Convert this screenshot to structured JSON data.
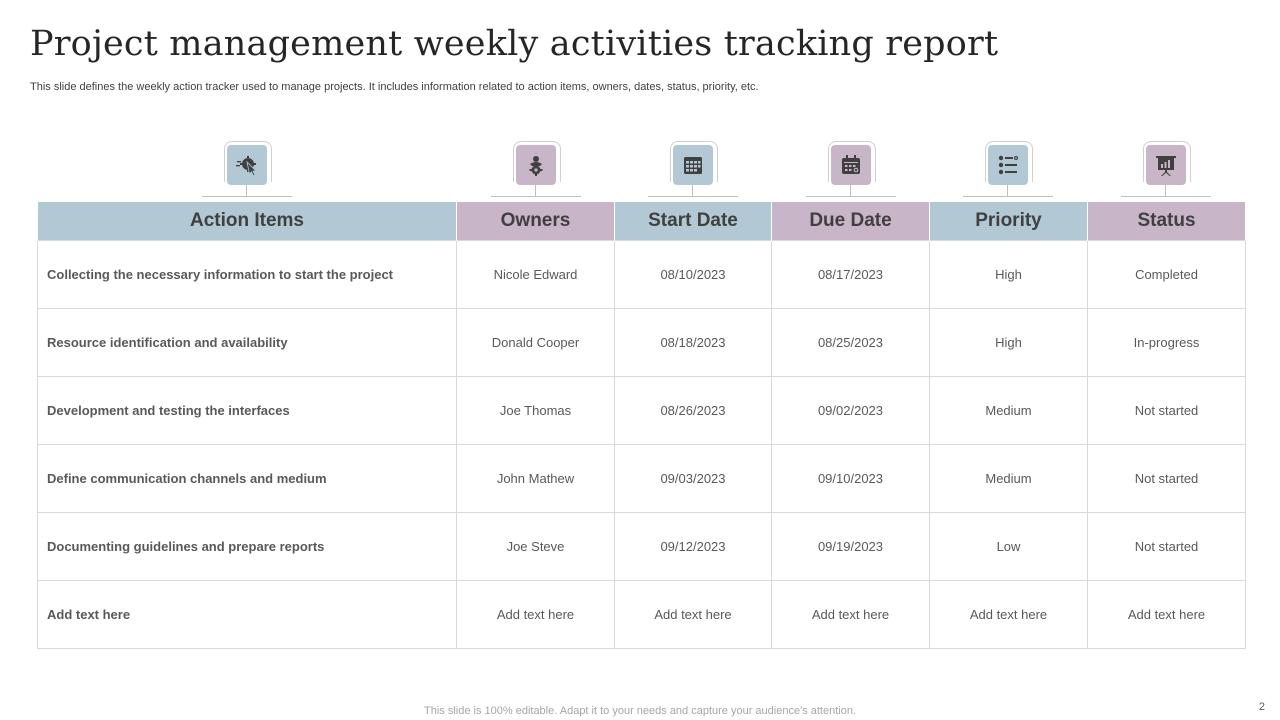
{
  "title": "Project management weekly activities tracking report",
  "subtitle": "This slide defines the weekly action tracker used to manage projects. It includes information related to action items, owners, dates, status, priority, etc.",
  "icons": [
    "gear-cursor-icon",
    "owner-person-icon",
    "calendar-icon",
    "calendar-alt-icon",
    "priority-list-icon",
    "presentation-board-icon"
  ],
  "colors": {
    "blue_header": "#b3c8d5",
    "mauve_header": "#c8b5c8",
    "icon_glyph": "#404040"
  },
  "table": {
    "headers": [
      "Action Items",
      "Owners",
      "Start Date",
      "Due Date",
      "Priority",
      "Status"
    ],
    "rows": [
      [
        "Collecting the necessary information to start  the project",
        "Nicole  Edward",
        "08/10/2023",
        "08/17/2023",
        "High",
        "Completed"
      ],
      [
        "Resource  identification and availability",
        "Donald  Cooper",
        "08/18/2023",
        "08/25/2023",
        "High",
        "In-progress"
      ],
      [
        "Development and testing  the interfaces",
        "Joe Thomas",
        "08/26/2023",
        "09/02/2023",
        "Medium",
        "Not started"
      ],
      [
        "Define communication channels and medium",
        "John Mathew",
        "09/03/2023",
        "09/10/2023",
        "Medium",
        "Not started"
      ],
      [
        "Documenting guidelines and prepare reports",
        "Joe  Steve",
        "09/12/2023",
        "09/19/2023",
        "Low",
        "Not started"
      ],
      [
        "Add text here",
        "Add text here",
        "Add text here",
        "Add text here",
        "Add text here",
        "Add text here"
      ]
    ]
  },
  "footer": "This slide is 100% editable. Adapt it to your needs and capture your audience's attention.",
  "page_number": "2"
}
